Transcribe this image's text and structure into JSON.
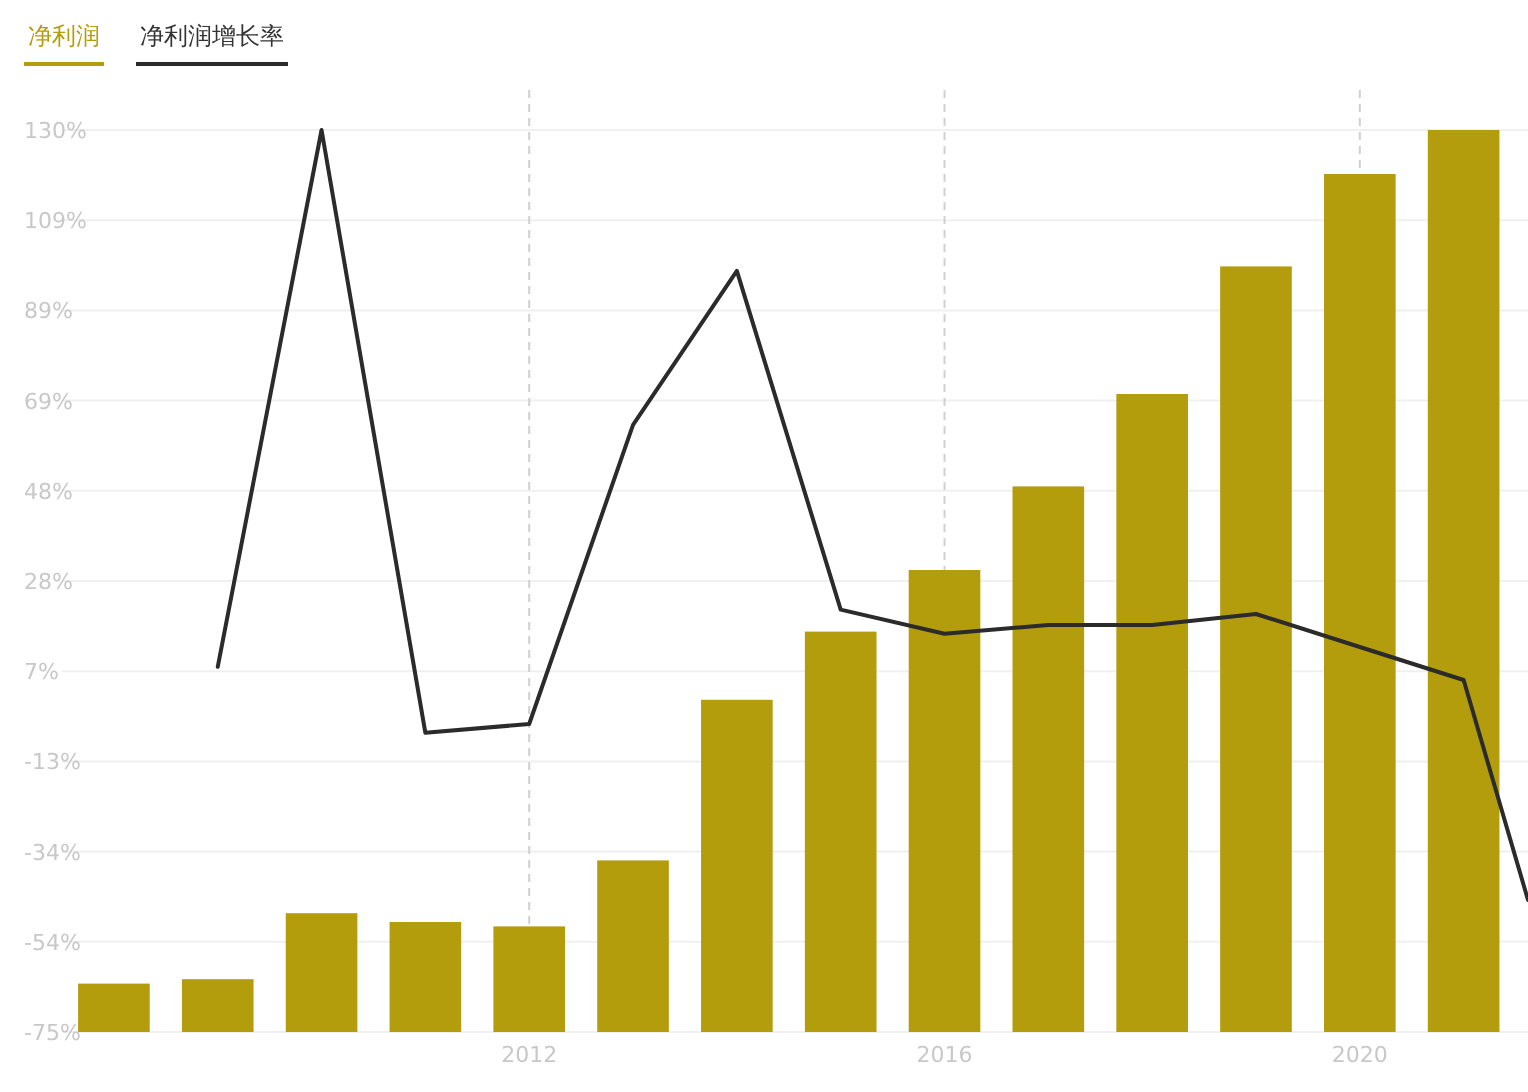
{
  "chart_data": {
    "type": "bar",
    "x": [
      2008,
      2009,
      2010,
      2011,
      2012,
      2013,
      2014,
      2015,
      2016,
      2017,
      2018,
      2019,
      2020,
      2021
    ],
    "series": [
      {
        "name": "净利润",
        "color": "#b49d0c",
        "base": [
          -75,
          -75,
          -75,
          -75,
          -75,
          -75,
          -75,
          -75,
          -75,
          -75,
          -75,
          -75,
          -75,
          -75
        ],
        "values": [
          11,
          12,
          27,
          25,
          24,
          39,
          75.5,
          91,
          105,
          124,
          145,
          174,
          195,
          205
        ]
      },
      {
        "name": "净利润增长率",
        "type": "line",
        "color": "#2b2b2b",
        "x": [
          2009,
          2010,
          2011,
          2012,
          2013,
          2014,
          2015,
          2016,
          2017,
          2018,
          2019,
          2020,
          2021,
          2021.62
        ],
        "values": [
          8,
          130,
          -7,
          -5,
          63,
          98,
          21,
          15.5,
          17.5,
          17.5,
          20,
          12.5,
          5,
          -45
        ]
      }
    ],
    "xlim": [
      2007.5,
      2021.62
    ],
    "ylim": [
      -75,
      130
    ],
    "xticks": [
      2012,
      2016,
      2020
    ],
    "yticks": [
      {
        "value": 130,
        "label": "130%"
      },
      {
        "value": 109.5,
        "label": "109%"
      },
      {
        "value": 89,
        "label": "89%"
      },
      {
        "value": 68.5,
        "label": "69%"
      },
      {
        "value": 48,
        "label": "48%"
      },
      {
        "value": 27.5,
        "label": "28%"
      },
      {
        "value": 7,
        "label": "7%"
      },
      {
        "value": -13.5,
        "label": "-13%"
      },
      {
        "value": -34,
        "label": "-34%"
      },
      {
        "value": -54.5,
        "label": "-54%"
      },
      {
        "value": -75,
        "label": "-75%"
      }
    ],
    "grid": true,
    "legend": "top left"
  }
}
